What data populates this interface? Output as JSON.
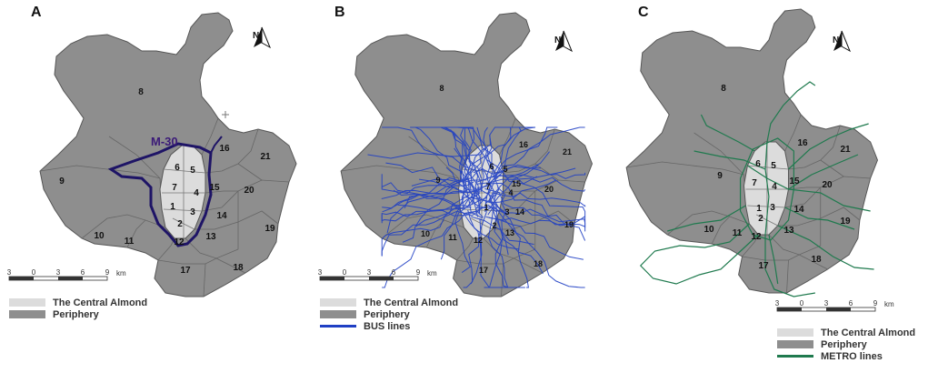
{
  "colors": {
    "periphery": "#8e8e8e",
    "central": "#dcdcdc",
    "border": "#555555",
    "m30": "#1e1466",
    "bus": "#1f3fc4",
    "metro": "#1f7a4e"
  },
  "north_label": "N",
  "scale": {
    "ticks": [
      "3",
      "0",
      "3",
      "6",
      "9"
    ],
    "unit": "km"
  },
  "district_labels": [
    "1",
    "2",
    "3",
    "4",
    "5",
    "6",
    "7",
    "8",
    "9",
    "10",
    "11",
    "12",
    "13",
    "14",
    "15",
    "16",
    "17",
    "18",
    "19",
    "20",
    "21"
  ],
  "panels": [
    {
      "letter": "A",
      "road_label": "M-30",
      "legend": [
        "The Central Almond",
        "Periphery"
      ]
    },
    {
      "letter": "B",
      "legend": [
        "The Central Almond",
        "Periphery",
        "BUS lines"
      ]
    },
    {
      "letter": "C",
      "legend": [
        "The Central Almond",
        "Periphery",
        "METRO lines"
      ]
    }
  ]
}
